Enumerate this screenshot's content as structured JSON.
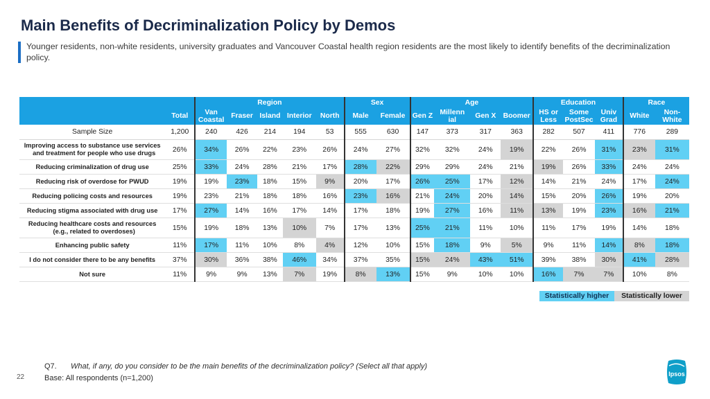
{
  "title": "Main Benefits of Decriminalization Policy by Demos",
  "subtitle": "Younger residents, non-white residents, university graduates and Vancouver Coastal health region residents are the most likely to identify benefits of the decriminalization policy.",
  "groups": {
    "region": "Region",
    "sex": "Sex",
    "age": "Age",
    "education": "Education",
    "race": "Race"
  },
  "columns": {
    "total": "Total",
    "van_a": "Van",
    "van_b": "Coastal",
    "fraser": "Fraser",
    "island": "Island",
    "interior": "Interior",
    "north": "North",
    "male": "Male",
    "female": "Female",
    "genz": "Gen Z",
    "mil_a": "Millenn",
    "mil_b": "ial",
    "genx": "Gen X",
    "boomer": "Boomer",
    "hs_a": "HS or",
    "hs_b": "Less",
    "some_a": "Some",
    "some_b": "PostSec",
    "univ_a": "Univ",
    "univ_b": "Grad",
    "white": "White",
    "nw_a": "Non-",
    "nw_b": "White"
  },
  "sample": {
    "label": "Sample Size",
    "values": [
      "1,200",
      "240",
      "426",
      "214",
      "194",
      "53",
      "555",
      "630",
      "147",
      "373",
      "317",
      "363",
      "282",
      "507",
      "411",
      "776",
      "289"
    ]
  },
  "rows": [
    {
      "label_a": "Improving access to substance use services",
      "label_b": "and treatment for people who use drugs",
      "values": [
        "26%",
        "34%",
        "26%",
        "22%",
        "23%",
        "26%",
        "24%",
        "27%",
        "32%",
        "32%",
        "24%",
        "19%",
        "22%",
        "26%",
        "31%",
        "23%",
        "31%"
      ]
    },
    {
      "label_a": "Reducing criminalization of drug use",
      "values": [
        "25%",
        "33%",
        "24%",
        "28%",
        "21%",
        "17%",
        "28%",
        "22%",
        "29%",
        "29%",
        "24%",
        "21%",
        "19%",
        "26%",
        "33%",
        "24%",
        "24%"
      ]
    },
    {
      "label_a": "Reducing risk of overdose for PWUD",
      "values": [
        "19%",
        "19%",
        "23%",
        "18%",
        "15%",
        "9%",
        "20%",
        "17%",
        "26%",
        "25%",
        "17%",
        "12%",
        "14%",
        "21%",
        "24%",
        "17%",
        "24%"
      ]
    },
    {
      "label_a": "Reducing policing costs and resources",
      "values": [
        "19%",
        "23%",
        "21%",
        "18%",
        "18%",
        "16%",
        "23%",
        "16%",
        "21%",
        "24%",
        "20%",
        "14%",
        "15%",
        "20%",
        "26%",
        "19%",
        "20%"
      ]
    },
    {
      "label_a": "Reducing stigma associated with drug use",
      "values": [
        "17%",
        "27%",
        "14%",
        "16%",
        "17%",
        "14%",
        "17%",
        "18%",
        "19%",
        "27%",
        "16%",
        "11%",
        "13%",
        "19%",
        "23%",
        "16%",
        "21%"
      ]
    },
    {
      "label_a": "Reducing healthcare costs and resources",
      "label_b": "(e.g., related to overdoses)",
      "values": [
        "15%",
        "19%",
        "18%",
        "13%",
        "10%",
        "7%",
        "17%",
        "13%",
        "25%",
        "21%",
        "11%",
        "10%",
        "11%",
        "17%",
        "19%",
        "14%",
        "18%"
      ]
    },
    {
      "label_a": "Enhancing public safety",
      "values": [
        "11%",
        "17%",
        "11%",
        "10%",
        "8%",
        "4%",
        "12%",
        "10%",
        "15%",
        "18%",
        "9%",
        "5%",
        "9%",
        "11%",
        "14%",
        "8%",
        "18%"
      ]
    },
    {
      "label_a": "I do not consider there to be any benefits",
      "values": [
        "37%",
        "30%",
        "36%",
        "38%",
        "46%",
        "34%",
        "37%",
        "35%",
        "15%",
        "24%",
        "43%",
        "51%",
        "39%",
        "38%",
        "30%",
        "41%",
        "28%"
      ]
    },
    {
      "label_a": "Not sure",
      "values": [
        "11%",
        "9%",
        "9%",
        "13%",
        "7%",
        "19%",
        "8%",
        "13%",
        "15%",
        "9%",
        "10%",
        "10%",
        "16%",
        "7%",
        "7%",
        "10%",
        "8%"
      ]
    }
  ],
  "legend": {
    "higher": "Statistically higher",
    "lower": "Statistically lower"
  },
  "footer": {
    "qnum": "Q7.",
    "question": "What, if any, do you consider to be the main benefits of the decriminalization policy? (Select all that apply)",
    "base": "Base: All respondents (n=1,200)",
    "page": "22"
  },
  "logo_text": "Ipsos",
  "colors": {
    "accent": "#1ba1e2",
    "higher": "#61d0f4",
    "lower": "#d4d4d4",
    "title": "#1b2a4a"
  }
}
